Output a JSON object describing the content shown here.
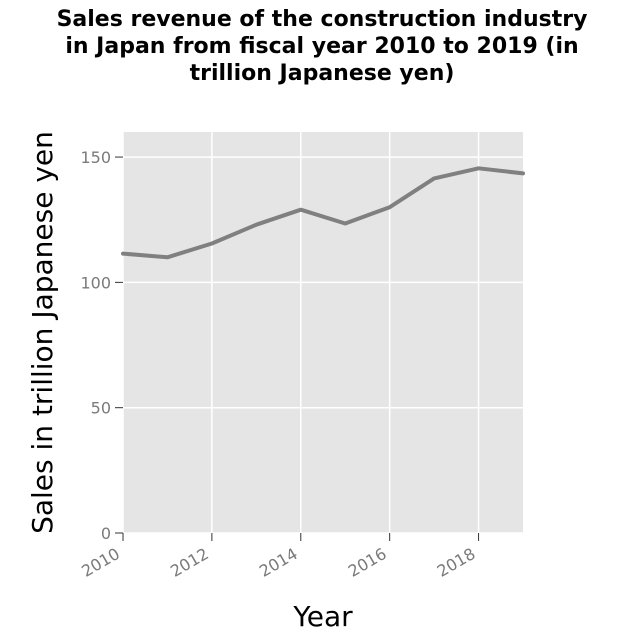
{
  "title_lines": [
    "Sales revenue of the construction industry",
    "in Japan from fiscal year 2010 to 2019 (in",
    "trillion Japanese yen)"
  ],
  "chart_data": {
    "type": "line",
    "title": "Sales revenue of the construction industry in Japan from fiscal year 2010 to 2019 (in trillion Japanese yen)",
    "xlabel": "Year",
    "ylabel": "Sales in trillion Japanese yen",
    "x": [
      2010,
      2011,
      2012,
      2013,
      2014,
      2015,
      2016,
      2017,
      2018,
      2019
    ],
    "series": [
      {
        "values": [
          111.5,
          110,
          115.5,
          123,
          129,
          123.5,
          130,
          141.5,
          145.5,
          143.5
        ]
      }
    ],
    "xlim": [
      2010,
      2019
    ],
    "ylim": [
      0,
      160
    ],
    "xticks": [
      2010,
      2012,
      2014,
      2016,
      2018
    ],
    "yticks": [
      0,
      50,
      100,
      150
    ],
    "xtick_labels": [
      "2010",
      "2012",
      "2014",
      "2016",
      "2018"
    ],
    "ytick_labels": [
      "0",
      "50",
      "100",
      "150"
    ],
    "grid": true,
    "colors": {
      "panel": "#e5e5e5",
      "grid": "#ffffff",
      "line": "#808080",
      "tick_text": "#7a7a7a"
    }
  }
}
